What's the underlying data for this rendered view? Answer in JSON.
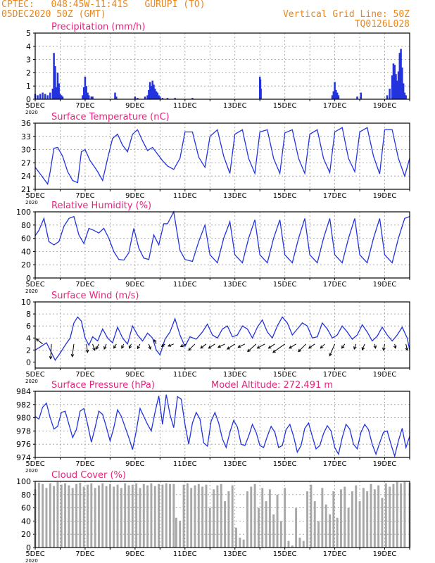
{
  "header": {
    "line1_left": "CPTEC:   048:45W-11:41S   GURUPI (TO)",
    "line2_left": "05DEC2020 50Z (GMT)",
    "line1_right": "Vertical Grid Line: 50Z",
    "line2_right": "TQ0126L028"
  },
  "colors": {
    "header": "#e8871e",
    "title": "#e8237f",
    "line": "#2233dd",
    "cloud": "#a8a8a8",
    "grid": "#999999"
  },
  "x_tick_labels": [
    "5DEC",
    "7DEC",
    "9DEC",
    "11DEC",
    "13DEC",
    "15DEC",
    "17DEC",
    "19DEC"
  ],
  "x_extra_label": "2020",
  "chart_data": [
    {
      "name": "precipitation",
      "type": "bar",
      "title": "Precipitation (mm/h)",
      "xlim": [
        5,
        20
      ],
      "ylim": [
        0,
        5
      ],
      "yticks": [
        0,
        1,
        2,
        3,
        4,
        5
      ],
      "x": [
        5.0,
        5.1,
        5.2,
        5.3,
        5.4,
        5.5,
        5.6,
        5.7,
        5.75,
        5.8,
        5.85,
        5.9,
        5.95,
        6.0,
        6.05,
        6.1,
        6.9,
        6.95,
        7.0,
        7.05,
        7.1,
        7.15,
        7.25,
        7.3,
        8.2,
        8.25,
        9.0,
        9.1,
        9.4,
        9.5,
        9.55,
        9.6,
        9.65,
        9.7,
        9.75,
        9.8,
        9.85,
        9.9,
        9.95,
        10.0,
        10.1,
        10.3,
        10.6,
        11.3,
        14.0,
        14.02,
        14.04,
        16.9,
        16.95,
        17.0,
        17.05,
        17.1,
        17.15,
        17.9,
        18.05,
        19.1,
        19.2,
        19.3,
        19.35,
        19.4,
        19.45,
        19.5,
        19.55,
        19.6,
        19.65,
        19.7,
        19.75,
        19.8,
        19.85
      ],
      "values": [
        0.4,
        0.3,
        0.4,
        0.5,
        0.4,
        0.3,
        0.5,
        0.8,
        3.5,
        2.5,
        0.9,
        2.0,
        1.2,
        0.4,
        0.3,
        0.2,
        0.3,
        0.9,
        1.7,
        1.0,
        0.5,
        0.3,
        0.2,
        0.2,
        0.5,
        0.2,
        0.2,
        0.1,
        0.2,
        0.3,
        0.7,
        1.3,
        1.0,
        1.4,
        1.1,
        0.8,
        0.6,
        0.5,
        0.3,
        0.2,
        0.1,
        0.1,
        0.1,
        0.1,
        1.7,
        1.5,
        0.8,
        0.3,
        0.6,
        1.3,
        0.7,
        0.5,
        0.3,
        0.2,
        0.5,
        0.3,
        0.8,
        1.8,
        2.7,
        2.6,
        1.9,
        1.4,
        2.1,
        3.5,
        3.8,
        2.4,
        1.2,
        0.5,
        0.3
      ]
    },
    {
      "name": "temperature",
      "type": "line",
      "title": "Surface Temperature (nC)",
      "xlim": [
        5,
        20
      ],
      "ylim": [
        21,
        36
      ],
      "yticks": [
        21,
        24,
        27,
        30,
        33,
        36
      ],
      "x": [
        5.0,
        5.2,
        5.5,
        5.6,
        5.75,
        5.9,
        6.1,
        6.3,
        6.5,
        6.7,
        6.85,
        7.0,
        7.2,
        7.35,
        7.5,
        7.7,
        7.9,
        8.1,
        8.3,
        8.5,
        8.7,
        8.9,
        9.1,
        9.3,
        9.5,
        9.7,
        9.9,
        10.1,
        10.3,
        10.55,
        10.8,
        11.0,
        11.3,
        11.55,
        11.8,
        12.0,
        12.3,
        12.55,
        12.8,
        13.0,
        13.3,
        13.55,
        13.8,
        14.0,
        14.3,
        14.55,
        14.8,
        15.0,
        15.3,
        15.55,
        15.8,
        16.0,
        16.3,
        16.55,
        16.8,
        17.0,
        17.3,
        17.55,
        17.8,
        18.0,
        18.3,
        18.55,
        18.8,
        19.0,
        19.3,
        19.55,
        19.8,
        20.0
      ],
      "values": [
        26.0,
        24.5,
        22.2,
        25.0,
        30.3,
        30.5,
        28.5,
        25.0,
        23.0,
        22.5,
        29.5,
        30.0,
        27.5,
        26.3,
        25.0,
        23.0,
        28.0,
        32.5,
        33.5,
        31.0,
        29.5,
        33.5,
        34.5,
        32.0,
        29.8,
        30.5,
        29.0,
        27.5,
        26.3,
        25.5,
        28.0,
        34.0,
        34.0,
        28.3,
        26.0,
        33.0,
        34.5,
        28.5,
        24.6,
        33.5,
        34.5,
        28.0,
        24.6,
        34.0,
        34.5,
        28.0,
        24.6,
        33.8,
        34.5,
        28.0,
        24.6,
        33.5,
        34.5,
        28.0,
        24.8,
        34.0,
        35.0,
        28.0,
        25.0,
        34.0,
        35.0,
        28.5,
        24.5,
        34.5,
        34.5,
        28.0,
        24.0,
        28.0
      ]
    },
    {
      "name": "humidity",
      "type": "line",
      "title": "Relative Humidity (%)",
      "xlim": [
        5,
        20
      ],
      "ylim": [
        0,
        100
      ],
      "yticks": [
        0,
        20,
        40,
        60,
        80,
        100
      ],
      "x": [
        5.0,
        5.15,
        5.35,
        5.55,
        5.75,
        5.95,
        6.15,
        6.35,
        6.55,
        6.75,
        6.95,
        7.15,
        7.35,
        7.55,
        7.75,
        7.95,
        8.15,
        8.35,
        8.55,
        8.75,
        8.95,
        9.15,
        9.35,
        9.55,
        9.75,
        9.95,
        10.15,
        10.3,
        10.55,
        10.8,
        11.0,
        11.3,
        11.55,
        11.8,
        12.0,
        12.3,
        12.55,
        12.8,
        13.0,
        13.3,
        13.55,
        13.8,
        14.0,
        14.3,
        14.55,
        14.8,
        15.0,
        15.3,
        15.55,
        15.8,
        16.0,
        16.3,
        16.55,
        16.8,
        17.0,
        17.3,
        17.55,
        17.8,
        18.0,
        18.3,
        18.55,
        18.8,
        19.0,
        19.3,
        19.55,
        19.8,
        20.0
      ],
      "values": [
        64.0,
        72.0,
        90.0,
        55.0,
        50.0,
        55.0,
        78.0,
        90.0,
        93.0,
        65.0,
        52.0,
        75.0,
        72.0,
        68.0,
        75.0,
        60.0,
        40.0,
        28.0,
        27.0,
        38.0,
        75.0,
        45.0,
        30.0,
        28.0,
        65.0,
        50.0,
        82.0,
        82.0,
        100.0,
        42.0,
        28.0,
        25.0,
        55.0,
        80.0,
        35.0,
        23.0,
        60.0,
        85.0,
        35.0,
        23.0,
        60.0,
        88.0,
        35.0,
        23.0,
        60.0,
        88.0,
        35.0,
        23.0,
        60.0,
        90.0,
        35.0,
        23.0,
        60.0,
        90.0,
        35.0,
        23.0,
        60.0,
        90.0,
        35.0,
        23.0,
        60.0,
        90.0,
        35.0,
        23.0,
        60.0,
        90.0,
        93.0
      ]
    },
    {
      "name": "wind",
      "type": "line",
      "title": "Surface Wind (m/s)",
      "xlim": [
        5,
        20
      ],
      "ylim": [
        -1,
        10
      ],
      "yticks": [
        0,
        2,
        4,
        6,
        8,
        10
      ],
      "x": [
        5.0,
        5.2,
        5.45,
        5.6,
        5.8,
        6.0,
        6.2,
        6.4,
        6.55,
        6.7,
        6.85,
        7.0,
        7.15,
        7.3,
        7.5,
        7.7,
        7.9,
        8.1,
        8.3,
        8.5,
        8.7,
        8.9,
        9.1,
        9.3,
        9.5,
        9.7,
        9.85,
        10.0,
        10.2,
        10.4,
        10.6,
        10.8,
        11.0,
        11.2,
        11.45,
        11.7,
        11.9,
        12.1,
        12.3,
        12.5,
        12.7,
        12.9,
        13.1,
        13.3,
        13.5,
        13.7,
        13.9,
        14.1,
        14.3,
        14.5,
        14.7,
        14.9,
        15.1,
        15.3,
        15.5,
        15.7,
        15.9,
        16.1,
        16.3,
        16.5,
        16.7,
        16.9,
        17.1,
        17.3,
        17.5,
        17.7,
        17.9,
        18.1,
        18.3,
        18.5,
        18.7,
        18.9,
        19.1,
        19.3,
        19.5,
        19.7,
        19.9,
        20.0
      ],
      "values": [
        2.0,
        2.5,
        3.2,
        2.0,
        0.3,
        1.5,
        2.8,
        4.0,
        6.5,
        7.5,
        6.8,
        4.0,
        2.8,
        4.2,
        3.5,
        5.5,
        4.0,
        3.2,
        5.8,
        4.0,
        3.0,
        6.0,
        4.5,
        3.5,
        4.8,
        4.0,
        2.0,
        1.2,
        3.8,
        5.0,
        7.2,
        4.5,
        2.6,
        4.2,
        3.8,
        5.0,
        6.3,
        4.5,
        4.0,
        5.5,
        6.0,
        4.2,
        4.5,
        6.0,
        5.5,
        4.0,
        5.8,
        7.0,
        5.0,
        4.0,
        6.0,
        7.5,
        6.5,
        4.5,
        5.5,
        6.5,
        6.0,
        4.0,
        4.2,
        6.5,
        5.5,
        4.0,
        4.5,
        6.0,
        5.0,
        3.8,
        4.5,
        6.2,
        5.0,
        3.5,
        4.3,
        5.8,
        4.5,
        3.5,
        4.5,
        5.8,
        4.0,
        2.0
      ]
    },
    {
      "name": "pressure",
      "type": "line",
      "title": "Surface Pressure (hPa)",
      "subtitle": "Model Altitude: 272.491  m",
      "xlim": [
        5,
        20
      ],
      "ylim": [
        974,
        984
      ],
      "yticks": [
        974,
        976,
        978,
        980,
        982,
        984
      ],
      "x": [
        5.0,
        5.15,
        5.3,
        5.45,
        5.6,
        5.75,
        5.9,
        6.05,
        6.2,
        6.35,
        6.5,
        6.65,
        6.8,
        6.95,
        7.1,
        7.25,
        7.4,
        7.55,
        7.7,
        7.85,
        8.0,
        8.15,
        8.3,
        8.45,
        8.6,
        8.75,
        8.9,
        9.05,
        9.2,
        9.35,
        9.5,
        9.65,
        9.8,
        9.95,
        10.1,
        10.25,
        10.4,
        10.55,
        10.7,
        10.85,
        11.0,
        11.15,
        11.3,
        11.45,
        11.6,
        11.75,
        11.9,
        12.05,
        12.2,
        12.35,
        12.5,
        12.65,
        12.8,
        12.95,
        13.1,
        13.25,
        13.4,
        13.55,
        13.7,
        13.85,
        14.0,
        14.15,
        14.3,
        14.45,
        14.6,
        14.75,
        14.9,
        15.05,
        15.2,
        15.35,
        15.5,
        15.65,
        15.8,
        15.95,
        16.1,
        16.25,
        16.4,
        16.55,
        16.7,
        16.85,
        17.0,
        17.15,
        17.3,
        17.45,
        17.6,
        17.75,
        17.9,
        18.05,
        18.2,
        18.35,
        18.5,
        18.65,
        18.8,
        18.95,
        19.1,
        19.25,
        19.4,
        19.55,
        19.7,
        19.85,
        20.0
      ],
      "values": [
        980.2,
        979.8,
        981.6,
        982.2,
        980.0,
        978.3,
        978.7,
        980.8,
        981.0,
        979.0,
        977.0,
        978.2,
        981.0,
        981.4,
        979.0,
        976.3,
        978.5,
        981.0,
        980.5,
        978.6,
        976.5,
        978.5,
        981.2,
        980.2,
        978.6,
        977.0,
        975.2,
        978.0,
        981.4,
        980.2,
        979.0,
        978.0,
        980.8,
        983.3,
        979.0,
        983.5,
        980.5,
        978.5,
        983.2,
        982.8,
        979.0,
        976.0,
        979.2,
        980.8,
        979.8,
        976.2,
        975.7,
        979.5,
        980.8,
        979.2,
        976.8,
        975.5,
        977.8,
        979.6,
        978.6,
        976.0,
        975.8,
        977.2,
        979.0,
        977.8,
        975.8,
        975.5,
        977.2,
        978.7,
        977.8,
        975.5,
        975.8,
        978.2,
        979.0,
        977.2,
        974.8,
        975.8,
        978.4,
        979.2,
        977.2,
        975.3,
        975.8,
        977.6,
        978.8,
        978.0,
        975.5,
        974.5,
        977.0,
        979.0,
        978.3,
        976.0,
        975.3,
        977.8,
        979.0,
        978.2,
        976.0,
        974.5,
        976.2,
        977.8,
        978.0,
        976.0,
        974.2,
        976.5,
        978.4,
        975.5,
        977.2
      ]
    },
    {
      "name": "cloud",
      "type": "area",
      "title": "Cloud Cover (%)",
      "xlim": [
        5,
        20
      ],
      "ylim": [
        0,
        100
      ],
      "yticks": [
        0,
        20,
        40,
        60,
        80,
        100
      ],
      "x": [
        5.0,
        5.15,
        5.3,
        5.45,
        5.6,
        5.75,
        5.9,
        6.05,
        6.2,
        6.35,
        6.5,
        6.65,
        6.8,
        6.95,
        7.1,
        7.25,
        7.4,
        7.55,
        7.7,
        7.85,
        8.0,
        8.15,
        8.3,
        8.45,
        8.6,
        8.75,
        8.9,
        9.05,
        9.2,
        9.35,
        9.5,
        9.65,
        9.8,
        9.95,
        10.1,
        10.25,
        10.4,
        10.55,
        10.65,
        10.8,
        10.95,
        11.1,
        11.25,
        11.4,
        11.55,
        11.7,
        11.85,
        12.0,
        12.15,
        12.3,
        12.45,
        12.6,
        12.75,
        12.9,
        13.05,
        13.2,
        13.35,
        13.5,
        13.65,
        13.8,
        13.95,
        14.1,
        14.25,
        14.4,
        14.55,
        14.7,
        14.85,
        15.0,
        15.15,
        15.3,
        15.45,
        15.6,
        15.75,
        15.9,
        16.05,
        16.2,
        16.35,
        16.5,
        16.65,
        16.8,
        16.95,
        17.1,
        17.25,
        17.4,
        17.55,
        17.7,
        17.85,
        18.0,
        18.15,
        18.3,
        18.45,
        18.6,
        18.75,
        18.9,
        19.05,
        19.2,
        19.35,
        19.5,
        19.65,
        19.8,
        20.0
      ],
      "values": [
        88,
        98,
        96,
        90,
        97,
        93,
        99,
        95,
        97,
        94,
        90,
        96,
        98,
        92,
        95,
        97,
        90,
        94,
        97,
        93,
        96,
        92,
        95,
        90,
        97,
        94,
        95,
        97,
        90,
        96,
        94,
        97,
        93,
        96,
        95,
        97,
        96,
        96,
        45,
        40,
        95,
        97,
        90,
        94,
        96,
        92,
        95,
        60,
        88,
        94,
        96,
        70,
        85,
        94,
        30,
        15,
        12,
        85,
        92,
        96,
        60,
        90,
        70,
        88,
        50,
        80,
        40,
        90,
        10,
        3,
        60,
        15,
        10,
        85,
        95,
        70,
        40,
        90,
        65,
        50,
        85,
        45,
        88,
        92,
        60,
        85,
        94,
        70,
        90,
        85,
        96,
        88,
        94,
        75,
        97,
        92,
        96,
        99,
        97,
        99,
        98
      ]
    }
  ],
  "wind_vectors": {
    "x": [
      5.3,
      5.65,
      6.55,
      7.05,
      7.3,
      7.55,
      7.85,
      8.25,
      8.55,
      8.85,
      9.2,
      9.55,
      9.85,
      10.2,
      10.55,
      11.05,
      11.4,
      11.85,
      12.2,
      12.6,
      13.0,
      13.4,
      13.85,
      14.2,
      14.6,
      15.0,
      15.45,
      15.85,
      16.2,
      16.6,
      17.0,
      17.4,
      17.85,
      18.2,
      18.6,
      19.0,
      19.4,
      19.85
    ],
    "u": [
      -1.5,
      -0.2,
      -0.4,
      0.3,
      0.5,
      -0.6,
      -0.5,
      -0.6,
      -0.5,
      -0.5,
      -0.6,
      0.4,
      -0.5,
      -0.8,
      -1.3,
      -1.3,
      -1.5,
      -1.3,
      -1.5,
      -1.6,
      -1.8,
      -1.6,
      -2.0,
      -1.8,
      -1.5,
      -2.8,
      -1.6,
      -1.8,
      -1.4,
      -1.0,
      -1.2,
      -0.7,
      -0.4,
      -0.6,
      0.2,
      -0.3,
      0.2,
      0.3
    ],
    "v": [
      1.2,
      -3.5,
      -3.0,
      -2.0,
      -1.5,
      -1.2,
      -1.2,
      -1.0,
      -1.0,
      -1.0,
      -1.1,
      -1.2,
      1.0,
      -0.6,
      -0.5,
      -0.6,
      -1.5,
      -1.0,
      -1.0,
      -0.8,
      -1.2,
      -0.8,
      -1.8,
      -1.0,
      -1.0,
      -2.0,
      -1.0,
      -1.8,
      -1.0,
      -1.0,
      -2.8,
      -1.0,
      -1.2,
      -1.4,
      -1.0,
      -1.5,
      -1.0,
      -1.5
    ]
  }
}
